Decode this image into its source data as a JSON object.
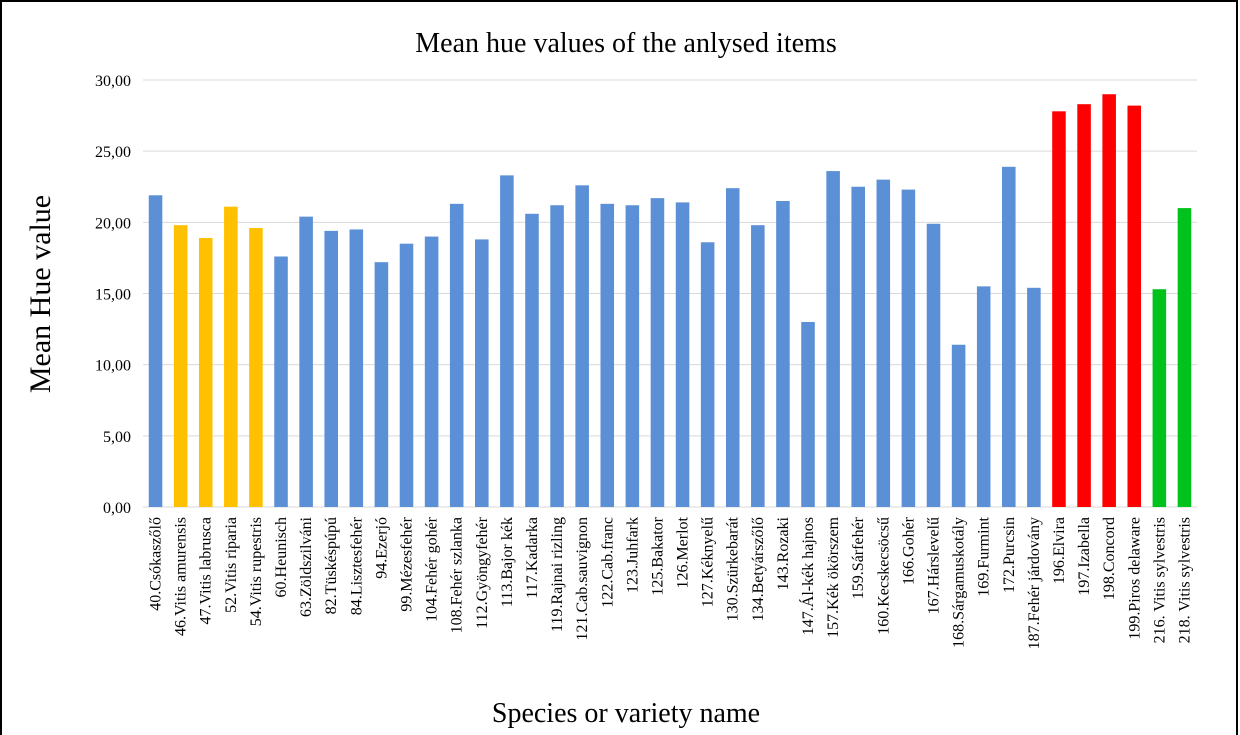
{
  "chart_data": {
    "type": "bar",
    "title": "Mean hue values of the anlysed items",
    "xlabel": "Species or variety name",
    "ylabel": "Mean Hue value",
    "categories": [
      "40.Csókaszőlő",
      "46.Vitis amurensis",
      "47.Vitis labrusca",
      "52.Vitis riparia",
      "54.Vitis rupestris",
      "60.Heunisch",
      "63.Zöldszilváni",
      "82.Tüskéspúpú",
      "84.Lisztesfehér",
      "94.Ezerjó",
      "99.Mézesfehér",
      "104.Fehér gohér",
      "108.Fehér szlanka",
      "112.Gyöngyfehér",
      "113.Bajor kék",
      "117.Kadarka",
      "119.Rajnai rizling",
      "121.Cab.sauvignon",
      "122.Cab.franc",
      "123.Juhfark",
      "125.Bakator",
      "126.Merlot",
      "127.Kéknyelű",
      "130.Szürkebarát",
      "134.Betyárszőlő",
      "143.Rozaki",
      "147.Ál-kék hajnos",
      "157.Kék ökörszem",
      "159.Sárfehér",
      "160.Kecskecsöcsű",
      "166.Gohér",
      "167.Hárslevelű",
      "168.Sárgamuskotály",
      "169.Furmint",
      "172.Purcsin",
      "187.Fehér járdovány",
      "196.Elvira",
      "197.Izabella",
      "198.Concord",
      "199.Piros delaware",
      "216. Vitis sylvestris",
      "218. Vitis sylvestris"
    ],
    "values": [
      21.9,
      19.8,
      18.9,
      21.1,
      19.6,
      17.6,
      20.4,
      19.4,
      19.5,
      17.2,
      18.5,
      19.0,
      21.3,
      18.8,
      23.3,
      20.6,
      21.2,
      22.6,
      21.3,
      21.2,
      21.7,
      21.4,
      18.6,
      22.4,
      19.8,
      21.5,
      13.0,
      23.6,
      22.5,
      23.0,
      22.3,
      19.9,
      11.4,
      15.5,
      23.9,
      15.4,
      27.8,
      28.3,
      29.0,
      28.2,
      15.3,
      21.0
    ],
    "colors": [
      "#5b8fd6",
      "#ffc000",
      "#ffc000",
      "#ffc000",
      "#ffc000",
      "#5b8fd6",
      "#5b8fd6",
      "#5b8fd6",
      "#5b8fd6",
      "#5b8fd6",
      "#5b8fd6",
      "#5b8fd6",
      "#5b8fd6",
      "#5b8fd6",
      "#5b8fd6",
      "#5b8fd6",
      "#5b8fd6",
      "#5b8fd6",
      "#5b8fd6",
      "#5b8fd6",
      "#5b8fd6",
      "#5b8fd6",
      "#5b8fd6",
      "#5b8fd6",
      "#5b8fd6",
      "#5b8fd6",
      "#5b8fd6",
      "#5b8fd6",
      "#5b8fd6",
      "#5b8fd6",
      "#5b8fd6",
      "#5b8fd6",
      "#5b8fd6",
      "#5b8fd6",
      "#5b8fd6",
      "#5b8fd6",
      "#ff0000",
      "#ff0000",
      "#ff0000",
      "#ff0000",
      "#00c21c",
      "#00c21c"
    ],
    "ylim": [
      0,
      30
    ],
    "yticks": [
      {
        "value": 0,
        "label": "0,00"
      },
      {
        "value": 5,
        "label": "5,00"
      },
      {
        "value": 10,
        "label": "10,00"
      },
      {
        "value": 15,
        "label": "15,00"
      },
      {
        "value": 20,
        "label": "20,00"
      },
      {
        "value": 25,
        "label": "25,00"
      },
      {
        "value": 30,
        "label": "30,00"
      }
    ],
    "grid": true
  }
}
